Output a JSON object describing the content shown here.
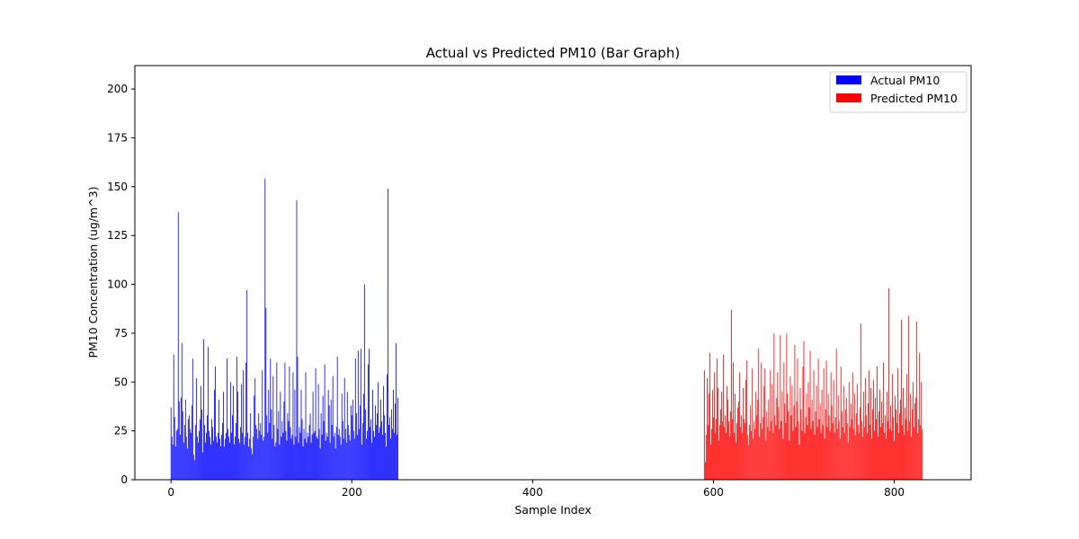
{
  "chart_data": {
    "type": "bar",
    "title": "Actual vs Predicted PM10 (Bar Graph)",
    "xlabel": "Sample Index",
    "ylabel": "PM10 Concentration (ug/m^3)",
    "xlim": [
      -40,
      885
    ],
    "ylim": [
      0,
      212
    ],
    "xticks": [
      0,
      200,
      400,
      600,
      800
    ],
    "yticks": [
      0,
      25,
      50,
      75,
      100,
      125,
      150,
      175,
      200
    ],
    "legend": {
      "placement": "top-right"
    },
    "series": [
      {
        "name": "Actual PM10",
        "color": "#0000ff",
        "x_start": 0,
        "values": [
          37,
          22,
          18,
          64,
          32,
          17,
          25,
          26,
          137,
          40,
          23,
          42,
          70,
          35,
          19,
          28,
          41,
          22,
          16,
          31,
          33,
          26,
          24,
          38,
          62,
          13,
          10,
          28,
          52,
          22,
          19,
          25,
          31,
          48,
          36,
          14,
          72,
          28,
          19,
          24,
          33,
          68,
          25,
          22,
          18,
          31,
          27,
          20,
          46,
          58,
          22,
          19,
          24,
          41,
          21,
          17,
          23,
          29,
          45,
          17,
          21,
          24,
          62,
          26,
          22,
          19,
          50,
          24,
          33,
          48,
          18,
          22,
          29,
          63,
          45,
          21,
          19,
          27,
          49,
          24,
          56,
          18,
          22,
          60,
          97,
          24,
          17,
          21,
          34,
          16,
          13,
          22,
          43,
          52,
          28,
          26,
          21,
          34,
          25,
          29,
          23,
          56,
          20,
          22,
          154,
          88,
          33,
          24,
          46,
          29,
          62,
          36,
          21,
          53,
          28,
          17,
          19,
          60,
          26,
          35,
          18,
          45,
          22,
          30,
          24,
          40,
          60,
          25,
          20,
          34,
          30,
          58,
          27,
          21,
          23,
          55,
          18,
          46,
          22,
          143,
          63,
          19,
          27,
          24,
          46,
          31,
          17,
          26,
          21,
          55,
          19,
          24,
          22,
          28,
          34,
          19,
          23,
          45,
          24,
          25,
          57,
          22,
          21,
          49,
          26,
          16,
          34,
          23,
          43,
          30,
          59,
          20,
          24,
          22,
          46,
          38,
          19,
          41,
          28,
          53,
          22,
          24,
          16,
          27,
          63,
          23,
          26,
          22,
          18,
          44,
          30,
          21,
          52,
          26,
          19,
          45,
          28,
          23,
          20,
          38,
          33,
          41,
          25,
          21,
          62,
          34,
          23,
          66,
          26,
          38,
          67,
          18,
          29,
          44,
          100,
          36,
          21,
          25,
          59,
          67,
          27,
          31,
          19,
          46,
          25,
          22,
          38,
          28,
          34,
          50,
          24,
          27,
          41,
          30,
          23,
          48,
          33,
          24,
          17,
          54,
          149,
          28,
          32,
          21,
          36,
          26,
          46,
          24,
          39,
          70,
          23,
          42
        ]
      },
      {
        "name": "Predicted PM10",
        "color": "#ff0000",
        "x_start": 590,
        "values": [
          56,
          9,
          23,
          52,
          28,
          44,
          65,
          18,
          26,
          46,
          32,
          55,
          24,
          31,
          62,
          47,
          20,
          28,
          36,
          45,
          30,
          64,
          27,
          33,
          24,
          48,
          41,
          30,
          22,
          35,
          87,
          31,
          60,
          24,
          44,
          19,
          29,
          37,
          40,
          55,
          27,
          33,
          24,
          47,
          31,
          29,
          51,
          61,
          23,
          18,
          28,
          38,
          25,
          57,
          21,
          30,
          26,
          45,
          33,
          41,
          67,
          22,
          29,
          60,
          26,
          32,
          48,
          57,
          20,
          35,
          27,
          41,
          25,
          56,
          30,
          49,
          24,
          75,
          33,
          28,
          42,
          55,
          37,
          26,
          74,
          30,
          45,
          21,
          60,
          39,
          29,
          75,
          44,
          35,
          20,
          53,
          33,
          48,
          25,
          38,
          69,
          27,
          40,
          62,
          30,
          18,
          47,
          36,
          25,
          58,
          71,
          24,
          32,
          44,
          28,
          50,
          37,
          66,
          26,
          41,
          30,
          56,
          23,
          35,
          48,
          27,
          62,
          31,
          39,
          24,
          46,
          28,
          57,
          21,
          36,
          61,
          27,
          44,
          33,
          25,
          55,
          38,
          29,
          51,
          24,
          32,
          67,
          26,
          43,
          30,
          21,
          58,
          35,
          27,
          48,
          24,
          36,
          42,
          29,
          19,
          50,
          27,
          39,
          31,
          55,
          26,
          44,
          23,
          34,
          49,
          28,
          24,
          37,
          80,
          30,
          22,
          45,
          27,
          52,
          33,
          24,
          39,
          56,
          28,
          47,
          21,
          36,
          51,
          25,
          42,
          31,
          58,
          22,
          35,
          46,
          27,
          40,
          29,
          60,
          24,
          33,
          21,
          45,
          30,
          98,
          26,
          38,
          25,
          54,
          32,
          20,
          43,
          36,
          29,
          57,
          24,
          34,
          41,
          82,
          28,
          47,
          23,
          37,
          31,
          54,
          25,
          84,
          30,
          44,
          22,
          36,
          50,
          27,
          39,
          42,
          81,
          24,
          31,
          65,
          28,
          50,
          26
        ]
      }
    ]
  }
}
